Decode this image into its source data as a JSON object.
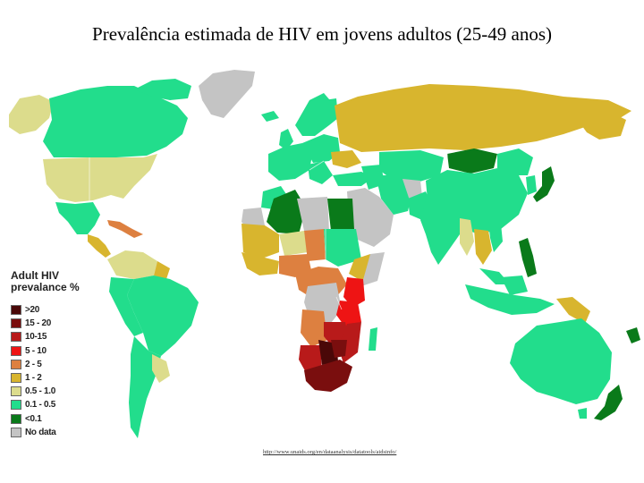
{
  "title": "Prevalência estimada de HIV em jovens adultos (25-49 anos)",
  "legend": {
    "title": "Adult HIV\nprevalance %",
    "items": [
      {
        "label": ">20",
        "color": "#4a0808"
      },
      {
        "label": "15 - 20",
        "color": "#7a0e0e"
      },
      {
        "label": "10-15",
        "color": "#b81a1a"
      },
      {
        "label": "5 - 10",
        "color": "#ee1414"
      },
      {
        "label": "2 - 5",
        "color": "#dd8040"
      },
      {
        "label": "1 - 2",
        "color": "#d8b52e"
      },
      {
        "label": "0.5 - 1.0",
        "color": "#dcdc8c"
      },
      {
        "label": "0.1 - 0.5",
        "color": "#22dd8c"
      },
      {
        "label": "<0.1",
        "color": "#0a7a1a"
      },
      {
        "label": "No data",
        "color": "#c4c4c4"
      }
    ]
  },
  "source": "http://www.unaids.org/en/dataanalysis/datatools/aidsinfo/",
  "colors": {
    "ocean": "#ffffff",
    "border": "#ffffff"
  }
}
